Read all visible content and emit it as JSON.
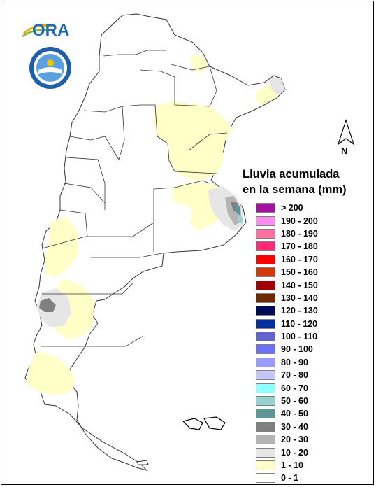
{
  "logos": {
    "ora_text": "ORA"
  },
  "north_arrow": {
    "label": "N"
  },
  "legend": {
    "title_line1": "Lluvia acumulada",
    "title_line2": "en la semana (mm)",
    "items": [
      {
        "label": "> 200",
        "color": "#a0119f"
      },
      {
        "label": "190 - 200",
        "color": "#ff8cf0"
      },
      {
        "label": "180 - 190",
        "color": "#ff6fa0"
      },
      {
        "label": "170 - 180",
        "color": "#ff2a78"
      },
      {
        "label": "160 - 170",
        "color": "#ff0000"
      },
      {
        "label": "150 - 160",
        "color": "#d23a0a"
      },
      {
        "label": "140 - 150",
        "color": "#a50000"
      },
      {
        "label": "130 - 140",
        "color": "#6b2a00"
      },
      {
        "label": "120 - 130",
        "color": "#000a5a"
      },
      {
        "label": "110 - 120",
        "color": "#0030a0"
      },
      {
        "label": "100 - 110",
        "color": "#6464d0"
      },
      {
        "label": "90 - 100",
        "color": "#6e6eff"
      },
      {
        "label": "80 - 90",
        "color": "#9a9aff"
      },
      {
        "label": "70 - 80",
        "color": "#c8c8f8"
      },
      {
        "label": "60 - 70",
        "color": "#8cffff"
      },
      {
        "label": "50 - 60",
        "color": "#96d2d2"
      },
      {
        "label": "40 - 50",
        "color": "#5a9696"
      },
      {
        "label": "30 - 40",
        "color": "#808080"
      },
      {
        "label": "20 - 30",
        "color": "#b4b4b4"
      },
      {
        "label": "10 - 20",
        "color": "#e6e6e6"
      },
      {
        "label": "1 - 10",
        "color": "#ffffc8"
      },
      {
        "label": "0 - 1",
        "color": "#ffffff"
      }
    ]
  }
}
